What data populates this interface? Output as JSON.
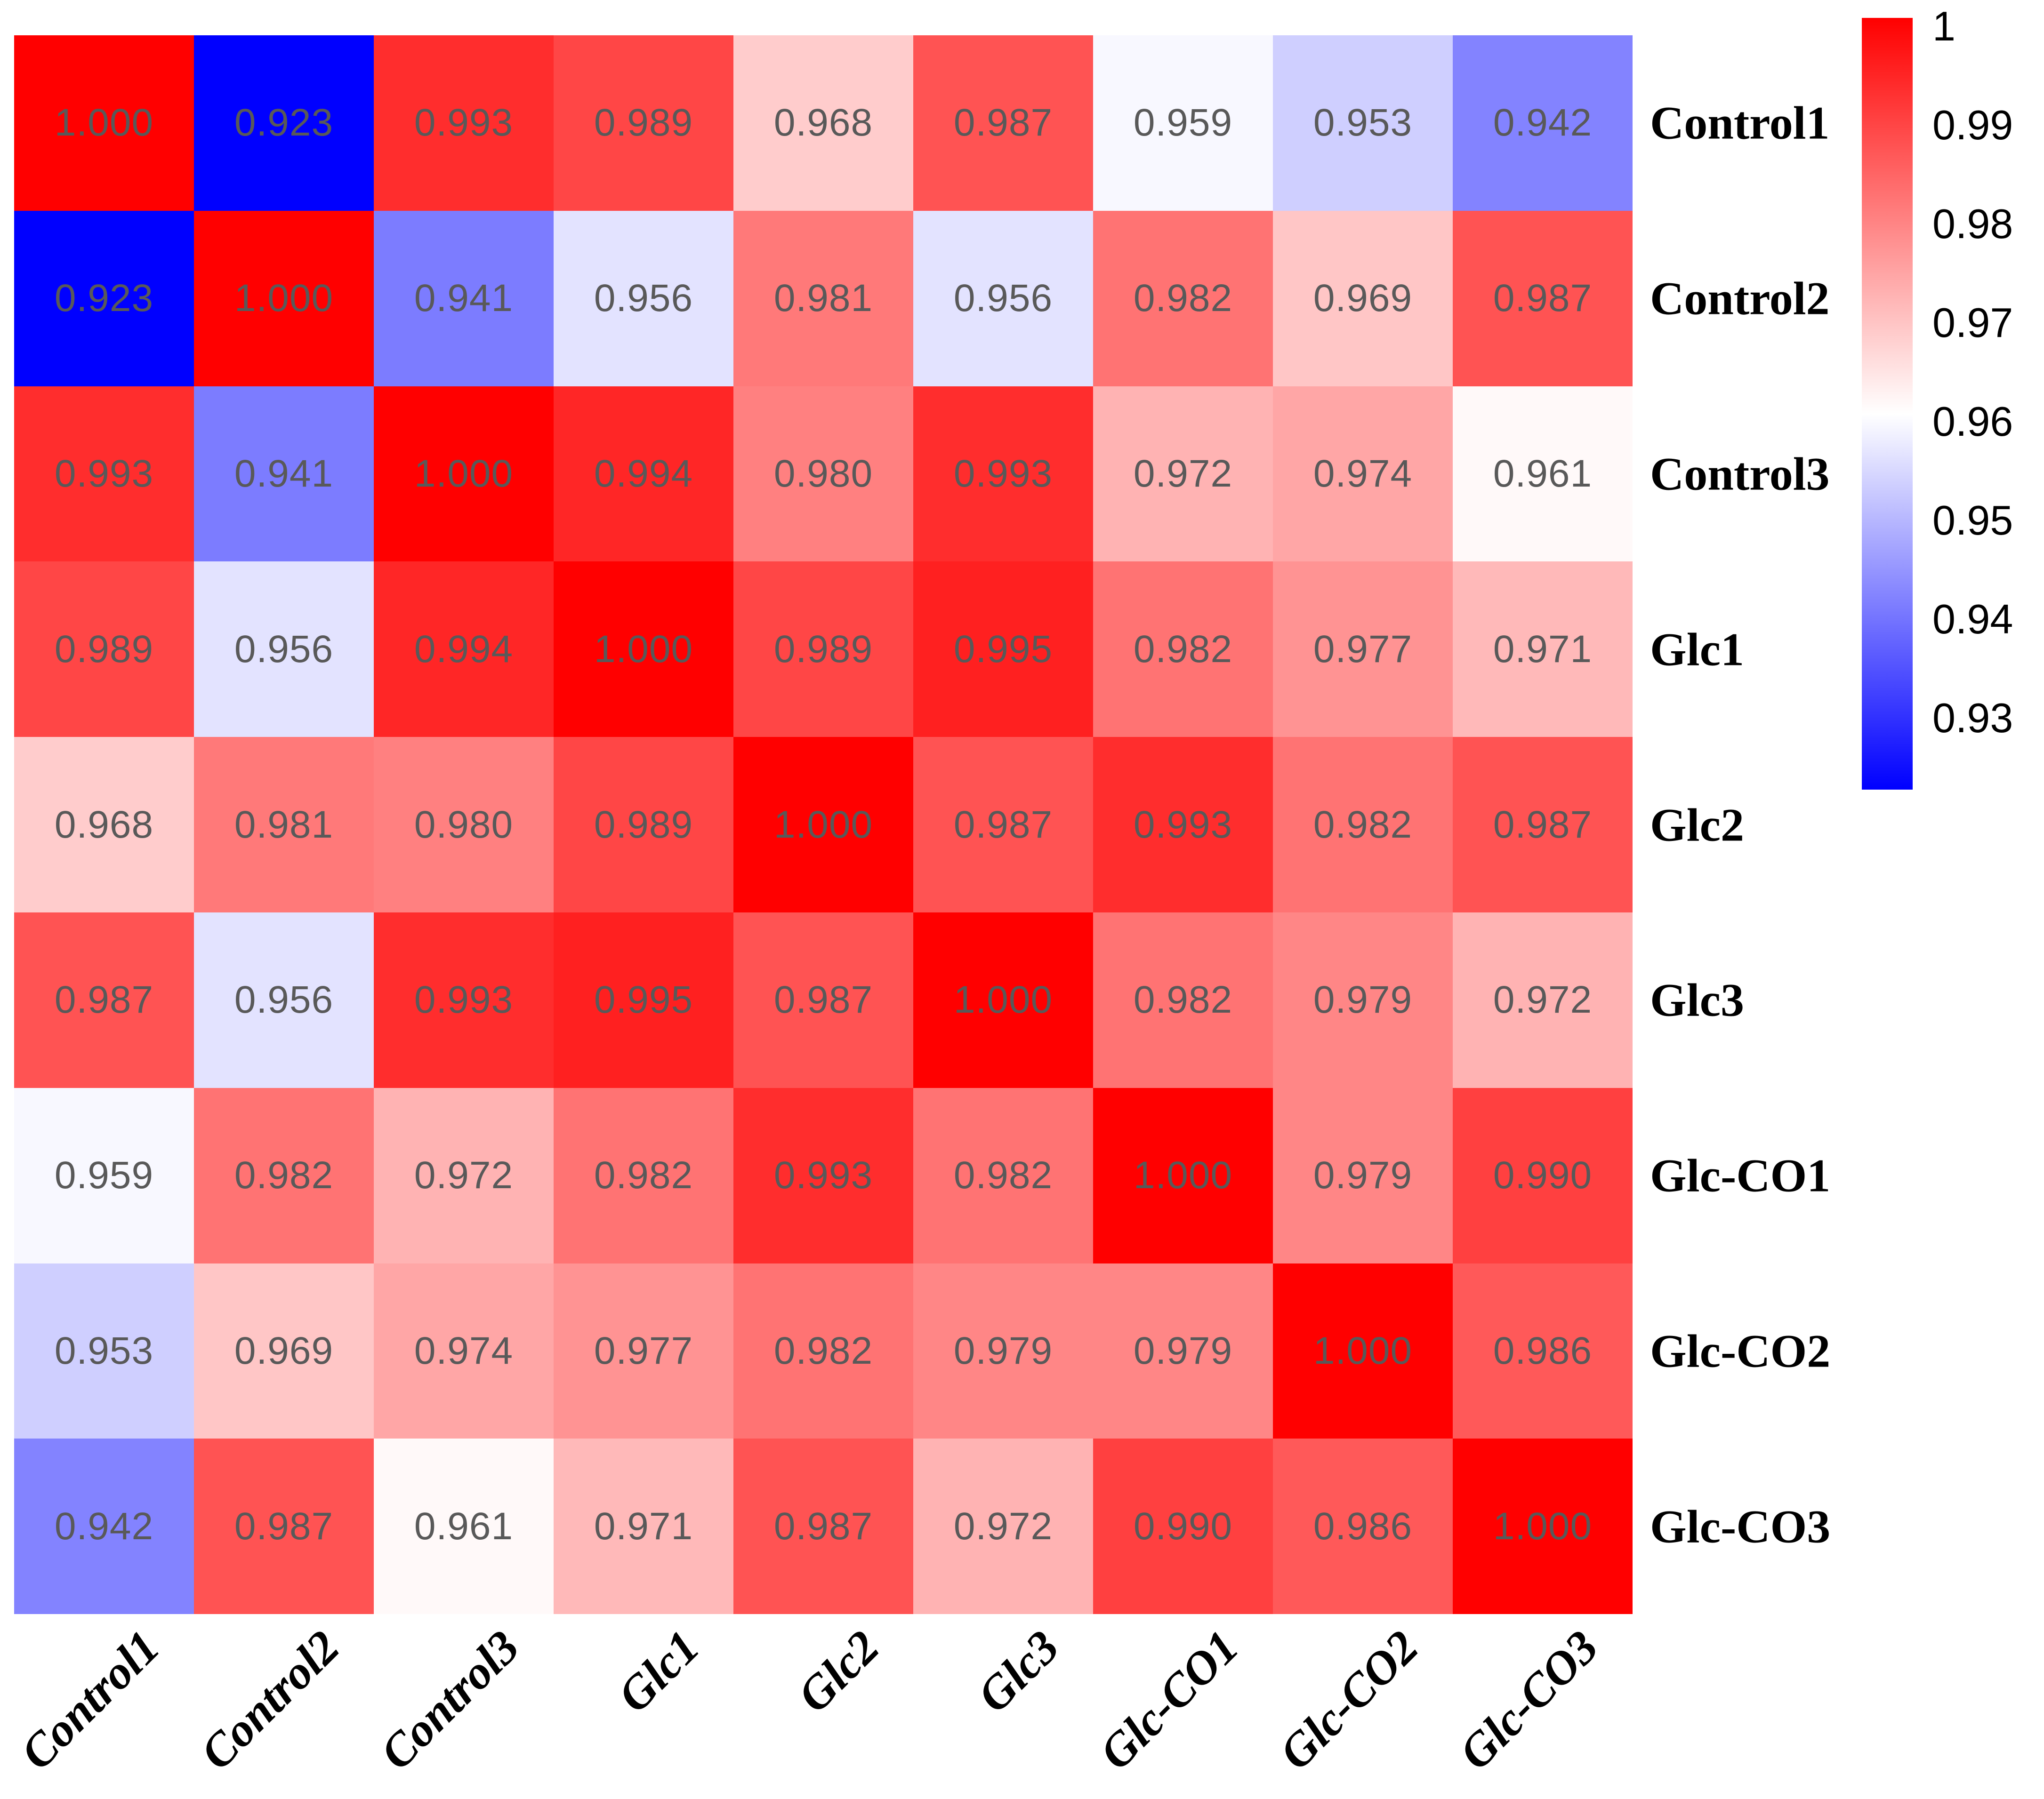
{
  "figure": {
    "background": "#ffffff"
  },
  "chart_data": {
    "type": "heatmap",
    "title": "",
    "xlabel": "",
    "ylabel": "",
    "labels": [
      "Control1",
      "Control2",
      "Control3",
      "Glc1",
      "Glc2",
      "Glc3",
      "Glc-CO1",
      "Glc-CO2",
      "Glc-CO3"
    ],
    "matrix": [
      [
        1.0,
        0.923,
        0.993,
        0.989,
        0.968,
        0.987,
        0.959,
        0.953,
        0.942
      ],
      [
        0.923,
        1.0,
        0.941,
        0.956,
        0.981,
        0.956,
        0.982,
        0.969,
        0.987
      ],
      [
        0.993,
        0.941,
        1.0,
        0.994,
        0.98,
        0.993,
        0.972,
        0.974,
        0.961
      ],
      [
        0.989,
        0.956,
        0.994,
        1.0,
        0.989,
        0.995,
        0.982,
        0.977,
        0.971
      ],
      [
        0.968,
        0.981,
        0.98,
        0.989,
        1.0,
        0.987,
        0.993,
        0.982,
        0.987
      ],
      [
        0.987,
        0.956,
        0.993,
        0.995,
        0.987,
        1.0,
        0.982,
        0.979,
        0.972
      ],
      [
        0.959,
        0.982,
        0.972,
        0.982,
        0.993,
        0.982,
        1.0,
        0.979,
        0.99
      ],
      [
        0.953,
        0.969,
        0.974,
        0.977,
        0.982,
        0.979,
        0.979,
        1.0,
        0.986
      ],
      [
        0.942,
        0.987,
        0.961,
        0.971,
        0.987,
        0.972,
        0.99,
        0.986,
        1.0
      ]
    ],
    "value_decimals": 3,
    "value_text_color": "#595959",
    "colormap": {
      "high_color": "#ff0000",
      "mid_color": "#ffffff",
      "low_color": "#0000ff",
      "max_value": 1.0,
      "mid_value": 0.96,
      "min_value": 0.923
    },
    "grid": false,
    "legend": {
      "position": "right",
      "range_top": 1.0,
      "range_bottom": 0.922,
      "ticks": [
        "1",
        "0.99",
        "0.98",
        "0.97",
        "0.96",
        "0.95",
        "0.94",
        "0.93"
      ],
      "tick_values": [
        1.0,
        0.99,
        0.98,
        0.97,
        0.96,
        0.95,
        0.94,
        0.93
      ]
    }
  }
}
